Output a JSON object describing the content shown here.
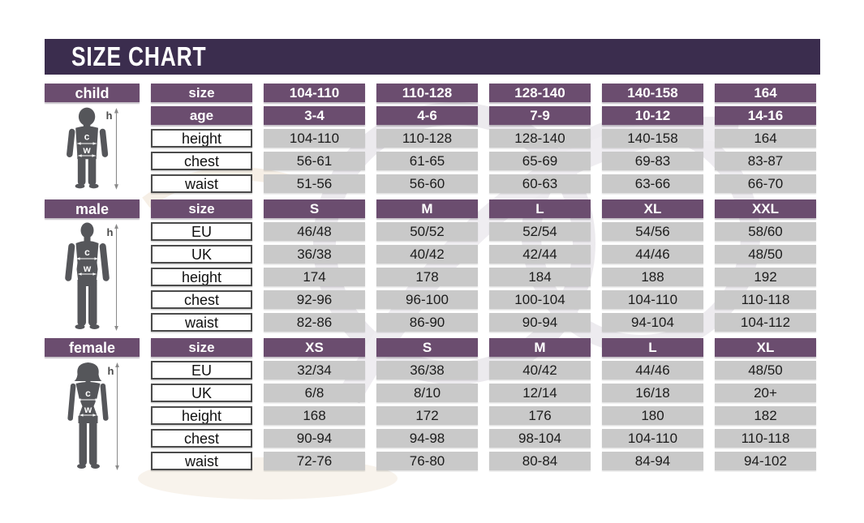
{
  "title": "SIZE CHART",
  "figure_labels": {
    "height": "h",
    "chest": "c",
    "waist": "w"
  },
  "colors": {
    "title_bar": "#3b2d4e",
    "header_purple": "#6b4d6f",
    "value_gray": "#c9c9c9",
    "silhouette": "#55565a"
  },
  "sections": [
    {
      "gender": "child",
      "figure": "child",
      "rows": [
        {
          "label": "size",
          "style": "header",
          "cells": [
            "104-110",
            "110-128",
            "128-140",
            "140-158",
            "164"
          ]
        },
        {
          "label": "age",
          "style": "header",
          "cells": [
            "3-4",
            "4-6",
            "7-9",
            "10-12",
            "14-16"
          ]
        },
        {
          "label": "height",
          "style": "data",
          "cells": [
            "104-110",
            "110-128",
            "128-140",
            "140-158",
            "164"
          ]
        },
        {
          "label": "chest",
          "style": "data",
          "cells": [
            "56-61",
            "61-65",
            "65-69",
            "69-83",
            "83-87"
          ]
        },
        {
          "label": "waist",
          "style": "data",
          "cells": [
            "51-56",
            "56-60",
            "60-63",
            "63-66",
            "66-70"
          ]
        }
      ]
    },
    {
      "gender": "male",
      "figure": "male",
      "rows": [
        {
          "label": "size",
          "style": "header",
          "cells": [
            "S",
            "M",
            "L",
            "XL",
            "XXL"
          ]
        },
        {
          "label": "EU",
          "style": "data",
          "cells": [
            "46/48",
            "50/52",
            "52/54",
            "54/56",
            "58/60"
          ]
        },
        {
          "label": "UK",
          "style": "data",
          "cells": [
            "36/38",
            "40/42",
            "42/44",
            "44/46",
            "48/50"
          ]
        },
        {
          "label": "height",
          "style": "data",
          "cells": [
            "174",
            "178",
            "184",
            "188",
            "192"
          ]
        },
        {
          "label": "chest",
          "style": "data",
          "cells": [
            "92-96",
            "96-100",
            "100-104",
            "104-110",
            "110-118"
          ]
        },
        {
          "label": "waist",
          "style": "data",
          "cells": [
            "82-86",
            "86-90",
            "90-94",
            "94-104",
            "104-112"
          ]
        }
      ]
    },
    {
      "gender": "female",
      "figure": "female",
      "rows": [
        {
          "label": "size",
          "style": "header",
          "cells": [
            "XS",
            "S",
            "M",
            "L",
            "XL"
          ]
        },
        {
          "label": "EU",
          "style": "data",
          "cells": [
            "32/34",
            "36/38",
            "40/42",
            "44/46",
            "48/50"
          ]
        },
        {
          "label": "UK",
          "style": "data",
          "cells": [
            "6/8",
            "8/10",
            "12/14",
            "16/18",
            "20+"
          ]
        },
        {
          "label": "height",
          "style": "data",
          "cells": [
            "168",
            "172",
            "176",
            "180",
            "182"
          ]
        },
        {
          "label": "chest",
          "style": "data",
          "cells": [
            "90-94",
            "94-98",
            "98-104",
            "104-110",
            "110-118"
          ]
        },
        {
          "label": "waist",
          "style": "data",
          "cells": [
            "72-76",
            "76-80",
            "80-84",
            "84-94",
            "94-102"
          ]
        }
      ]
    }
  ],
  "chart_data": [
    {
      "type": "table",
      "title": "child",
      "columns": [
        "size",
        "104-110",
        "110-128",
        "128-140",
        "140-158",
        "164"
      ],
      "rows": [
        [
          "age",
          "3-4",
          "4-6",
          "7-9",
          "10-12",
          "14-16"
        ],
        [
          "height",
          "104-110",
          "110-128",
          "128-140",
          "140-158",
          "164"
        ],
        [
          "chest",
          "56-61",
          "61-65",
          "65-69",
          "69-83",
          "83-87"
        ],
        [
          "waist",
          "51-56",
          "56-60",
          "60-63",
          "63-66",
          "66-70"
        ]
      ]
    },
    {
      "type": "table",
      "title": "male",
      "columns": [
        "size",
        "S",
        "M",
        "L",
        "XL",
        "XXL"
      ],
      "rows": [
        [
          "EU",
          "46/48",
          "50/52",
          "52/54",
          "54/56",
          "58/60"
        ],
        [
          "UK",
          "36/38",
          "40/42",
          "42/44",
          "44/46",
          "48/50"
        ],
        [
          "height",
          "174",
          "178",
          "184",
          "188",
          "192"
        ],
        [
          "chest",
          "92-96",
          "96-100",
          "100-104",
          "104-110",
          "110-118"
        ],
        [
          "waist",
          "82-86",
          "86-90",
          "90-94",
          "94-104",
          "104-112"
        ]
      ]
    },
    {
      "type": "table",
      "title": "female",
      "columns": [
        "size",
        "XS",
        "S",
        "M",
        "L",
        "XL"
      ],
      "rows": [
        [
          "EU",
          "32/34",
          "36/38",
          "40/42",
          "44/46",
          "48/50"
        ],
        [
          "UK",
          "6/8",
          "8/10",
          "12/14",
          "16/18",
          "20+"
        ],
        [
          "height",
          "168",
          "172",
          "176",
          "180",
          "182"
        ],
        [
          "chest",
          "90-94",
          "94-98",
          "98-104",
          "104-110",
          "110-118"
        ],
        [
          "waist",
          "72-76",
          "76-80",
          "80-84",
          "84-94",
          "94-102"
        ]
      ]
    }
  ]
}
